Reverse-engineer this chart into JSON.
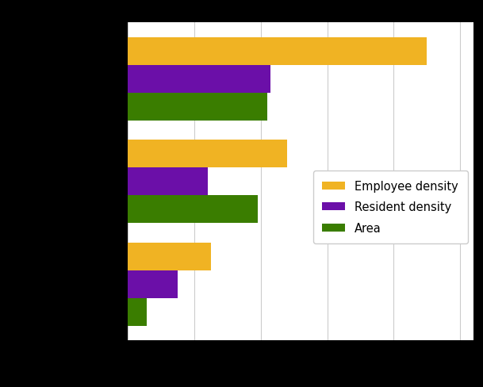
{
  "series": [
    {
      "label": "Employee density",
      "color": "#F0B323",
      "values": [
        450,
        240,
        125
      ]
    },
    {
      "label": "Resident density",
      "color": "#6B0FA8",
      "values": [
        215,
        120,
        75
      ]
    },
    {
      "label": "Area",
      "color": "#3A7D00",
      "values": [
        210,
        195,
        28
      ]
    }
  ],
  "xlim": [
    0,
    520
  ],
  "bar_height": 0.27,
  "figure_bg_color": "#000000",
  "axes_bg_color": "#ffffff",
  "grid_color": "#cccccc",
  "legend_fontsize": 10.5,
  "figsize": [
    6.09,
    4.89
  ],
  "dpi": 100
}
